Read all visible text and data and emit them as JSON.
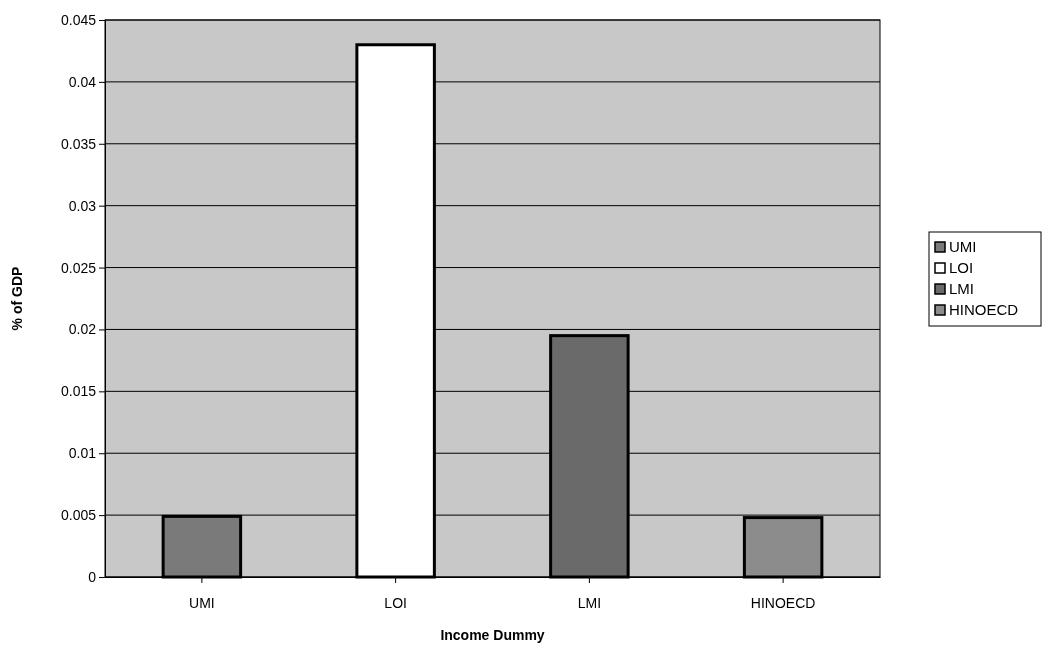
{
  "chart_data": {
    "type": "bar",
    "xlabel": "Income Dummy",
    "ylabel": "% of GDP",
    "categories": [
      "UMI",
      "LOI",
      "LMI",
      "HINOECD"
    ],
    "series": [
      {
        "name": "UMI",
        "color": "#7a7a7a",
        "values": [
          0.0049,
          null,
          null,
          null
        ]
      },
      {
        "name": "LOI",
        "color": "#ffffff",
        "values": [
          null,
          0.043,
          null,
          null
        ]
      },
      {
        "name": "LMI",
        "color": "#6a6a6a",
        "values": [
          null,
          null,
          0.0195,
          null
        ]
      },
      {
        "name": "HINOECD",
        "color": "#8c8c8c",
        "values": [
          null,
          null,
          null,
          0.0048
        ]
      }
    ],
    "ylim": [
      0,
      0.045
    ],
    "yticks": [
      0,
      0.005,
      0.01,
      0.015,
      0.02,
      0.025,
      0.03,
      0.035,
      0.04,
      0.045
    ],
    "grid": "y",
    "legend": "right"
  }
}
